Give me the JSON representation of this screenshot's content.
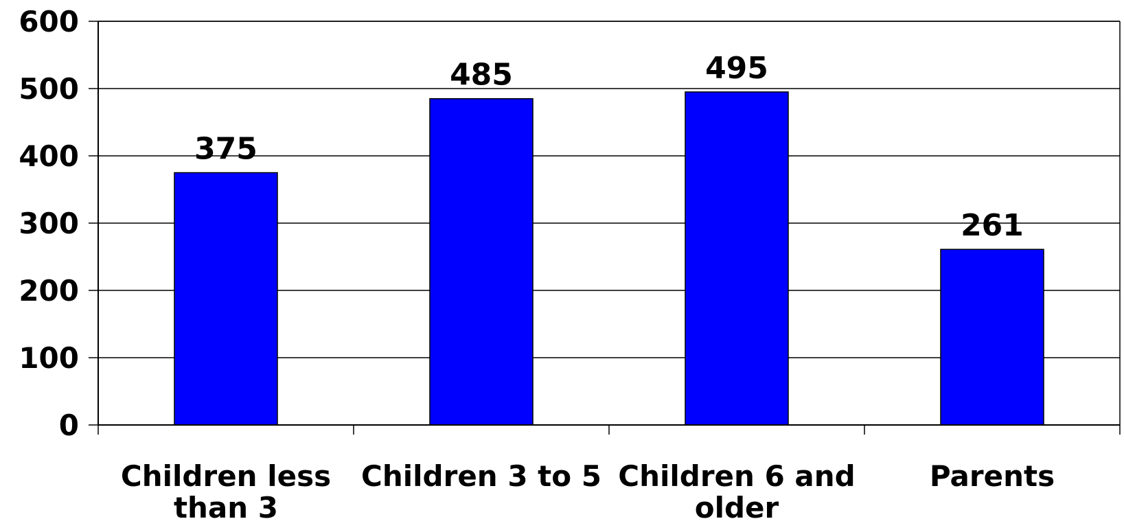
{
  "chart_data": {
    "type": "bar",
    "title": "",
    "xlabel": "",
    "ylabel": "",
    "categories": [
      [
        "Children less",
        "than 3"
      ],
      [
        "Children 3 to 5"
      ],
      [
        "Children 6 and",
        "older"
      ],
      [
        "Parents"
      ]
    ],
    "values": [
      375,
      485,
      495,
      261
    ],
    "data_labels": [
      "375",
      "485",
      "495",
      "261"
    ],
    "ylim": [
      0,
      600
    ],
    "yticks": [
      0,
      100,
      200,
      300,
      400,
      500,
      600
    ],
    "ytick_labels": [
      "0",
      "100",
      "200",
      "300",
      "400",
      "500",
      "600"
    ],
    "grid": true,
    "legend": "none",
    "colors": {
      "bar_fill": "#0000ff",
      "bar_stroke": "#000000",
      "grid": "#000000",
      "axis": "#000000",
      "background": "#ffffff"
    }
  }
}
